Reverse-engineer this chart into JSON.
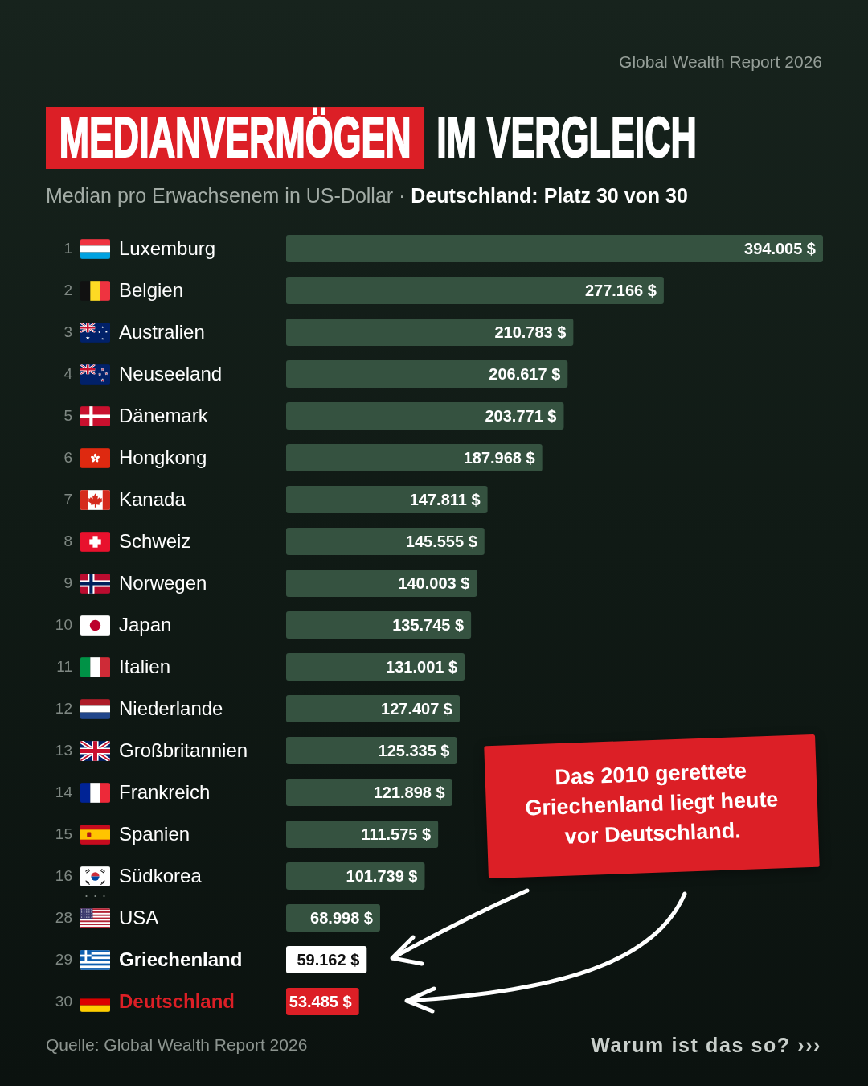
{
  "chart_data": {
    "type": "bar",
    "orientation": "horizontal",
    "title": "MEDIANVERMÖGEN IM VERGLEICH",
    "subtitle": "Median pro Erwachsenem in US-Dollar · Deutschland: Platz 30 von 30",
    "categories": [
      "1 Luxemburg",
      "2 Belgien",
      "3 Australien",
      "4 Neuseeland",
      "5 Dänemark",
      "6 Hongkong",
      "7 Kanada",
      "8 Schweiz",
      "9 Norwegen",
      "10 Japan",
      "11 Italien",
      "12 Niederlande",
      "13 Großbritannien",
      "14 Frankreich",
      "15 Spanien",
      "16 Südkorea",
      "28 USA",
      "29 Griechenland",
      "30 Deutschland"
    ],
    "values": [
      394005,
      277166,
      210783,
      206617,
      203771,
      187968,
      147811,
      145555,
      140003,
      135745,
      131001,
      127407,
      125335,
      121898,
      111575,
      101739,
      68998,
      59162,
      53485
    ],
    "colors": [
      "#355240",
      "#355240",
      "#355240",
      "#355240",
      "#355240",
      "#355240",
      "#355240",
      "#355240",
      "#355240",
      "#355240",
      "#355240",
      "#355240",
      "#355240",
      "#355240",
      "#355240",
      "#355240",
      "#355240",
      "#ffffff",
      "#dc1f26"
    ],
    "value_labels": [
      "394.005 $",
      "277.166 $",
      "210.783 $",
      "206.617 $",
      "203.771 $",
      "187.968 $",
      "147.811 $",
      "145.555 $",
      "140.003 $",
      "135.745 $",
      "131.001 $",
      "127.407 $",
      "125.335 $",
      "121.898 $",
      "111.575 $",
      "101.739 $",
      "68.998 $",
      "59.162 $",
      "53.485 $"
    ],
    "tick_labels": "y",
    "annotations": [
      "Global Wealth Report 2026",
      "Das 2010 gerettete Griechenland liegt heute vor Deutschland.",
      "· · ·",
      "Quelle: Global Wealth Report 2026",
      "Warum ist das so? ›››"
    ]
  }
}
